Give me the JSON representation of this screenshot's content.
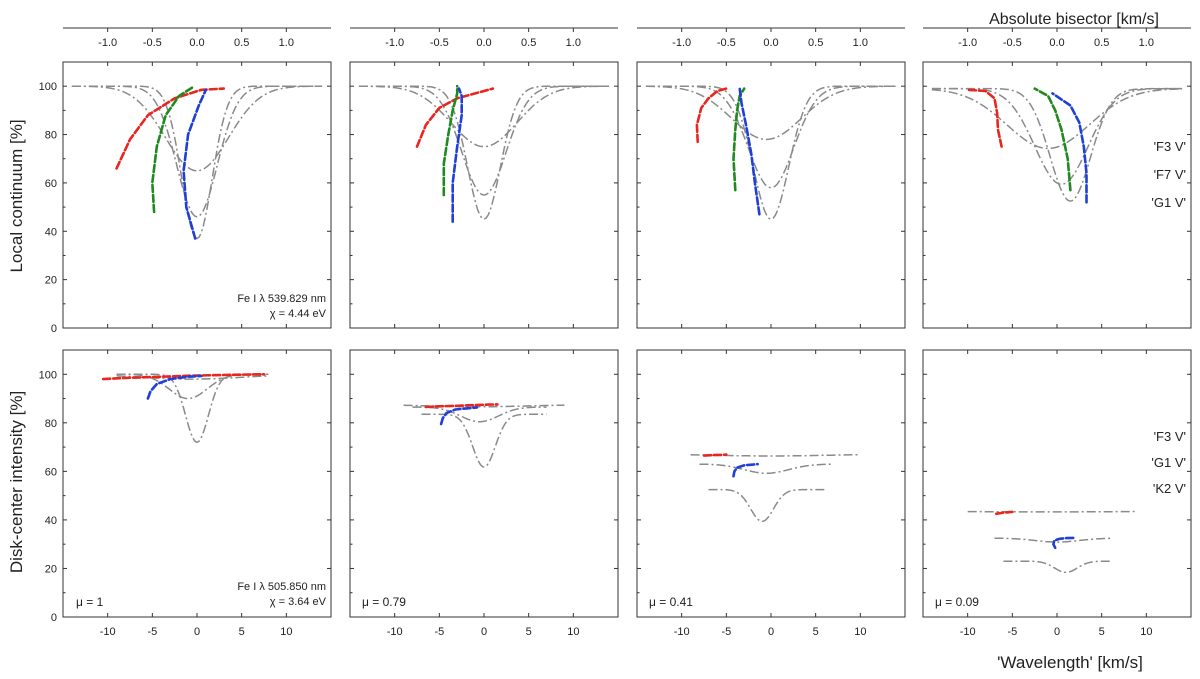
{
  "figure": {
    "top_axis_title": "Absolute bisector [km/s]",
    "bottom_axis_title": "'Wavelength' [km/s]",
    "top_row_ylabel": "Local continuum [%]",
    "bottom_row_ylabel": "Disk-center intensity [%]",
    "top_tick_labels": [
      "-1.0",
      "-0.5",
      "0.0",
      "0.5",
      "1.0"
    ],
    "bottom_tick_labels": [
      "-10",
      "-5",
      "0",
      "5",
      "10"
    ],
    "y_tick_labels": [
      "0",
      "20",
      "40",
      "60",
      "80",
      "100"
    ],
    "top_line_label": "Fe I  λ 539.829 nm",
    "top_line_chi": "χ =  4.44 eV",
    "bottom_line_label": "Fe I  λ 505.850 nm",
    "bottom_line_chi": "χ =  3.64 eV",
    "mu_labels": [
      "μ = 1",
      "μ = 0.79",
      "μ = 0.41",
      "μ = 0.09"
    ],
    "legend_top": [
      {
        "label": "'F3 V'",
        "color": "#e8251f"
      },
      {
        "label": "'F7 V'",
        "color": "#1f8a1f"
      },
      {
        "label": "'G1 V'",
        "color": "#1f3fd8"
      }
    ],
    "legend_bottom": [
      {
        "label": "'F3 V'",
        "color": "#e8251f"
      },
      {
        "label": "'G1 V'",
        "color": "#1f3fd8"
      },
      {
        "label": "'K2 V'",
        "color": "#7a7a7a"
      }
    ]
  },
  "colors": {
    "F3V": "#e8251f",
    "F7V": "#1f8a1f",
    "G1V": "#1f3fd8",
    "K2V": "#7a7a7a",
    "profile": "#8a8a8a"
  },
  "chart_data": {
    "type": "line",
    "x_range_wavelength_kms": [
      -15,
      15
    ],
    "x_range_bisector_kms": [
      -1.5,
      1.5
    ],
    "y_range_percent": [
      0,
      110
    ],
    "panels": [
      {
        "row": "local continuum",
        "mu": 1,
        "profiles": [
          {
            "name": "F3 V",
            "center": 0.0,
            "depth": 0.35,
            "width": 5.0,
            "base": 100
          },
          {
            "name": "F7 V",
            "center": 0.0,
            "depth": 0.54,
            "width": 3.2,
            "base": 100
          },
          {
            "name": "G1 V",
            "center": 0.0,
            "depth": 0.63,
            "width": 2.4,
            "base": 100
          }
        ],
        "bisectors": [
          {
            "name": "F3 V",
            "points": [
              [
                -0.9,
                66
              ],
              [
                -0.75,
                78
              ],
              [
                -0.55,
                88
              ],
              [
                -0.25,
                95
              ],
              [
                0.05,
                98.5
              ],
              [
                0.3,
                99
              ]
            ]
          },
          {
            "name": "F7 V",
            "points": [
              [
                -0.48,
                48
              ],
              [
                -0.5,
                60
              ],
              [
                -0.45,
                75
              ],
              [
                -0.35,
                88
              ],
              [
                -0.2,
                96
              ],
              [
                -0.05,
                99.5
              ]
            ]
          },
          {
            "name": "G1 V",
            "points": [
              [
                -0.02,
                37
              ],
              [
                -0.12,
                50
              ],
              [
                -0.15,
                65
              ],
              [
                -0.1,
                80
              ],
              [
                0.02,
                92
              ],
              [
                0.1,
                98.5
              ]
            ]
          }
        ]
      },
      {
        "row": "local continuum",
        "mu": 0.79,
        "profiles": [
          {
            "name": "F3 V",
            "center": 0.0,
            "depth": 0.25,
            "width": 5.2,
            "base": 100
          },
          {
            "name": "F7 V",
            "center": 0.0,
            "depth": 0.45,
            "width": 3.5,
            "base": 100
          },
          {
            "name": "G1 V",
            "center": 0.0,
            "depth": 0.55,
            "width": 2.6,
            "base": 100
          }
        ],
        "bisectors": [
          {
            "name": "F3 V",
            "points": [
              [
                -0.75,
                75
              ],
              [
                -0.65,
                84
              ],
              [
                -0.5,
                91
              ],
              [
                -0.3,
                95
              ],
              [
                -0.05,
                97.5
              ],
              [
                0.1,
                99
              ]
            ]
          },
          {
            "name": "F7 V",
            "points": [
              [
                -0.45,
                55
              ],
              [
                -0.45,
                68
              ],
              [
                -0.4,
                80
              ],
              [
                -0.35,
                90
              ],
              [
                -0.3,
                97
              ],
              [
                -0.3,
                100
              ]
            ]
          },
          {
            "name": "G1 V",
            "points": [
              [
                -0.35,
                44
              ],
              [
                -0.35,
                60
              ],
              [
                -0.3,
                75
              ],
              [
                -0.25,
                88
              ],
              [
                -0.25,
                96
              ],
              [
                -0.28,
                99
              ]
            ]
          }
        ]
      },
      {
        "row": "local continuum",
        "mu": 0.41,
        "profiles": [
          {
            "name": "F3 V",
            "center": -0.5,
            "depth": 0.22,
            "width": 5.5,
            "base": 100
          },
          {
            "name": "F7 V",
            "center": 0.0,
            "depth": 0.42,
            "width": 3.6,
            "base": 100
          },
          {
            "name": "G1 V",
            "center": 0.0,
            "depth": 0.55,
            "width": 2.8,
            "base": 100
          }
        ],
        "bisectors": [
          {
            "name": "F3 V",
            "points": [
              [
                -0.82,
                77
              ],
              [
                -0.83,
                84
              ],
              [
                -0.78,
                91
              ],
              [
                -0.7,
                95
              ],
              [
                -0.6,
                98
              ],
              [
                -0.5,
                99
              ]
            ]
          },
          {
            "name": "F7 V",
            "points": [
              [
                -0.4,
                57
              ],
              [
                -0.42,
                70
              ],
              [
                -0.4,
                82
              ],
              [
                -0.38,
                90
              ],
              [
                -0.35,
                96
              ],
              [
                -0.3,
                99
              ]
            ]
          },
          {
            "name": "G1 V",
            "points": [
              [
                -0.13,
                47
              ],
              [
                -0.18,
                60
              ],
              [
                -0.22,
                72
              ],
              [
                -0.28,
                84
              ],
              [
                -0.33,
                93
              ],
              [
                -0.35,
                99
              ]
            ]
          }
        ]
      },
      {
        "row": "local continuum",
        "mu": 0.09,
        "profiles": [
          {
            "name": "F3 V",
            "center": -1.0,
            "depth": 0.25,
            "width": 6.5,
            "base": 99
          },
          {
            "name": "F7 V",
            "center": 0.5,
            "depth": 0.4,
            "width": 4.2,
            "base": 99
          },
          {
            "name": "G1 V",
            "center": 1.5,
            "depth": 0.47,
            "width": 3.2,
            "base": 99
          }
        ],
        "bisectors": [
          {
            "name": "F3 V",
            "points": [
              [
                -0.62,
                75
              ],
              [
                -0.66,
                82
              ],
              [
                -0.67,
                89
              ],
              [
                -0.7,
                95
              ],
              [
                -0.8,
                98
              ],
              [
                -1.0,
                98.5
              ]
            ]
          },
          {
            "name": "F7 V",
            "points": [
              [
                0.15,
                57
              ],
              [
                0.12,
                70
              ],
              [
                0.05,
                82
              ],
              [
                -0.02,
                90
              ],
              [
                -0.1,
                96
              ],
              [
                -0.25,
                99
              ]
            ]
          },
          {
            "name": "G1 V",
            "points": [
              [
                0.33,
                52
              ],
              [
                0.33,
                64
              ],
              [
                0.3,
                75
              ],
              [
                0.25,
                85
              ],
              [
                0.15,
                92
              ],
              [
                -0.05,
                97
              ]
            ]
          }
        ]
      },
      {
        "row": "disk-center intensity",
        "mu": 1,
        "profiles": [
          {
            "name": "F3 V",
            "center": -0.5,
            "depth": 0.02,
            "width": 8.0,
            "base": 100,
            "xmin": -9,
            "xmax": 8
          },
          {
            "name": "G1 V",
            "center": -1.0,
            "depth": 0.1,
            "width": 3.0,
            "base": 100,
            "xmin": -9,
            "xmax": 7
          },
          {
            "name": "K2 V",
            "center": 0.0,
            "depth": 0.28,
            "width": 1.8,
            "base": 100,
            "xmin": -9,
            "xmax": 8
          }
        ],
        "bisectors": [
          {
            "name": "F3 V",
            "points": [
              [
                -10.5,
                98
              ],
              [
                -8,
                98.5
              ],
              [
                -4,
                99
              ],
              [
                0,
                99.5
              ],
              [
                4,
                99.8
              ],
              [
                7.5,
                100
              ]
            ]
          },
          {
            "name": "G1 V",
            "points": [
              [
                -5.5,
                90
              ],
              [
                -5.2,
                93
              ],
              [
                -4.5,
                96
              ],
              [
                -3,
                98
              ],
              [
                -1,
                99
              ],
              [
                0.5,
                99.3
              ]
            ]
          }
        ]
      },
      {
        "row": "disk-center intensity",
        "mu": 0.79,
        "profiles": [
          {
            "name": "F3 V",
            "center": -0.5,
            "depth": 0.01,
            "width": 8.0,
            "base": 87.5,
            "xmin": -9,
            "xmax": 9
          },
          {
            "name": "G1 V",
            "center": -0.5,
            "depth": 0.07,
            "width": 3.0,
            "base": 86.5,
            "xmin": -8,
            "xmax": 7
          },
          {
            "name": "K2 V",
            "center": 0.0,
            "depth": 0.26,
            "width": 1.8,
            "base": 83.5,
            "xmin": -7,
            "xmax": 7
          }
        ],
        "bisectors": [
          {
            "name": "F3 V",
            "points": [
              [
                -6.5,
                86.5
              ],
              [
                -5,
                86.8
              ],
              [
                -3,
                87
              ],
              [
                -1,
                87.3
              ],
              [
                0.5,
                87.5
              ],
              [
                1.5,
                87.6
              ]
            ]
          },
          {
            "name": "G1 V",
            "points": [
              [
                -4.8,
                79.5
              ],
              [
                -4.6,
                82
              ],
              [
                -4.2,
                84
              ],
              [
                -3.2,
                85.5
              ],
              [
                -1.8,
                86
              ],
              [
                -0.8,
                86.3
              ]
            ]
          }
        ]
      },
      {
        "row": "disk-center intensity",
        "mu": 0.41,
        "profiles": [
          {
            "name": "F3 V",
            "center": 0.0,
            "depth": 0.01,
            "width": 8.0,
            "base": 67,
            "xmin": -9,
            "xmax": 10
          },
          {
            "name": "G1 V",
            "center": -0.5,
            "depth": 0.06,
            "width": 3.5,
            "base": 63,
            "xmin": -8,
            "xmax": 7
          },
          {
            "name": "K2 V",
            "center": -1.0,
            "depth": 0.25,
            "width": 1.8,
            "base": 52.5,
            "xmin": -7,
            "xmax": 6
          }
        ],
        "bisectors": [
          {
            "name": "F3 V",
            "points": [
              [
                -7.5,
                66.5
              ],
              [
                -7,
                66.6
              ],
              [
                -6.5,
                66.7
              ],
              [
                -6,
                66.8
              ],
              [
                -5.5,
                66.8
              ],
              [
                -5,
                66.9
              ]
            ]
          },
          {
            "name": "G1 V",
            "points": [
              [
                -4.2,
                58
              ],
              [
                -4.1,
                60
              ],
              [
                -3.8,
                61.5
              ],
              [
                -3,
                62.5
              ],
              [
                -2,
                62.8
              ],
              [
                -1.5,
                63
              ]
            ]
          }
        ]
      },
      {
        "row": "disk-center intensity",
        "mu": 0.09,
        "profiles": [
          {
            "name": "F3 V",
            "center": -1.0,
            "depth": 0.005,
            "width": 8.0,
            "base": 43.5,
            "xmin": -10,
            "xmax": 9
          },
          {
            "name": "G1 V",
            "center": 0.0,
            "depth": 0.05,
            "width": 3.5,
            "base": 32.5,
            "xmin": -7,
            "xmax": 6
          },
          {
            "name": "K2 V",
            "center": 1.0,
            "depth": 0.2,
            "width": 1.8,
            "base": 23,
            "xmin": -6,
            "xmax": 6
          }
        ],
        "bisectors": [
          {
            "name": "F3 V",
            "points": [
              [
                -6.8,
                42.5
              ],
              [
                -6.5,
                42.7
              ],
              [
                -6,
                43
              ],
              [
                -5.6,
                43.1
              ],
              [
                -5.3,
                43.2
              ],
              [
                -5,
                43.3
              ]
            ]
          },
          {
            "name": "G1 V",
            "points": [
              [
                -0.2,
                28.5
              ],
              [
                -0.4,
                30
              ],
              [
                -0.3,
                31.5
              ],
              [
                0.3,
                32.2
              ],
              [
                1.0,
                32.5
              ],
              [
                2.0,
                32.6
              ]
            ]
          }
        ]
      }
    ]
  }
}
